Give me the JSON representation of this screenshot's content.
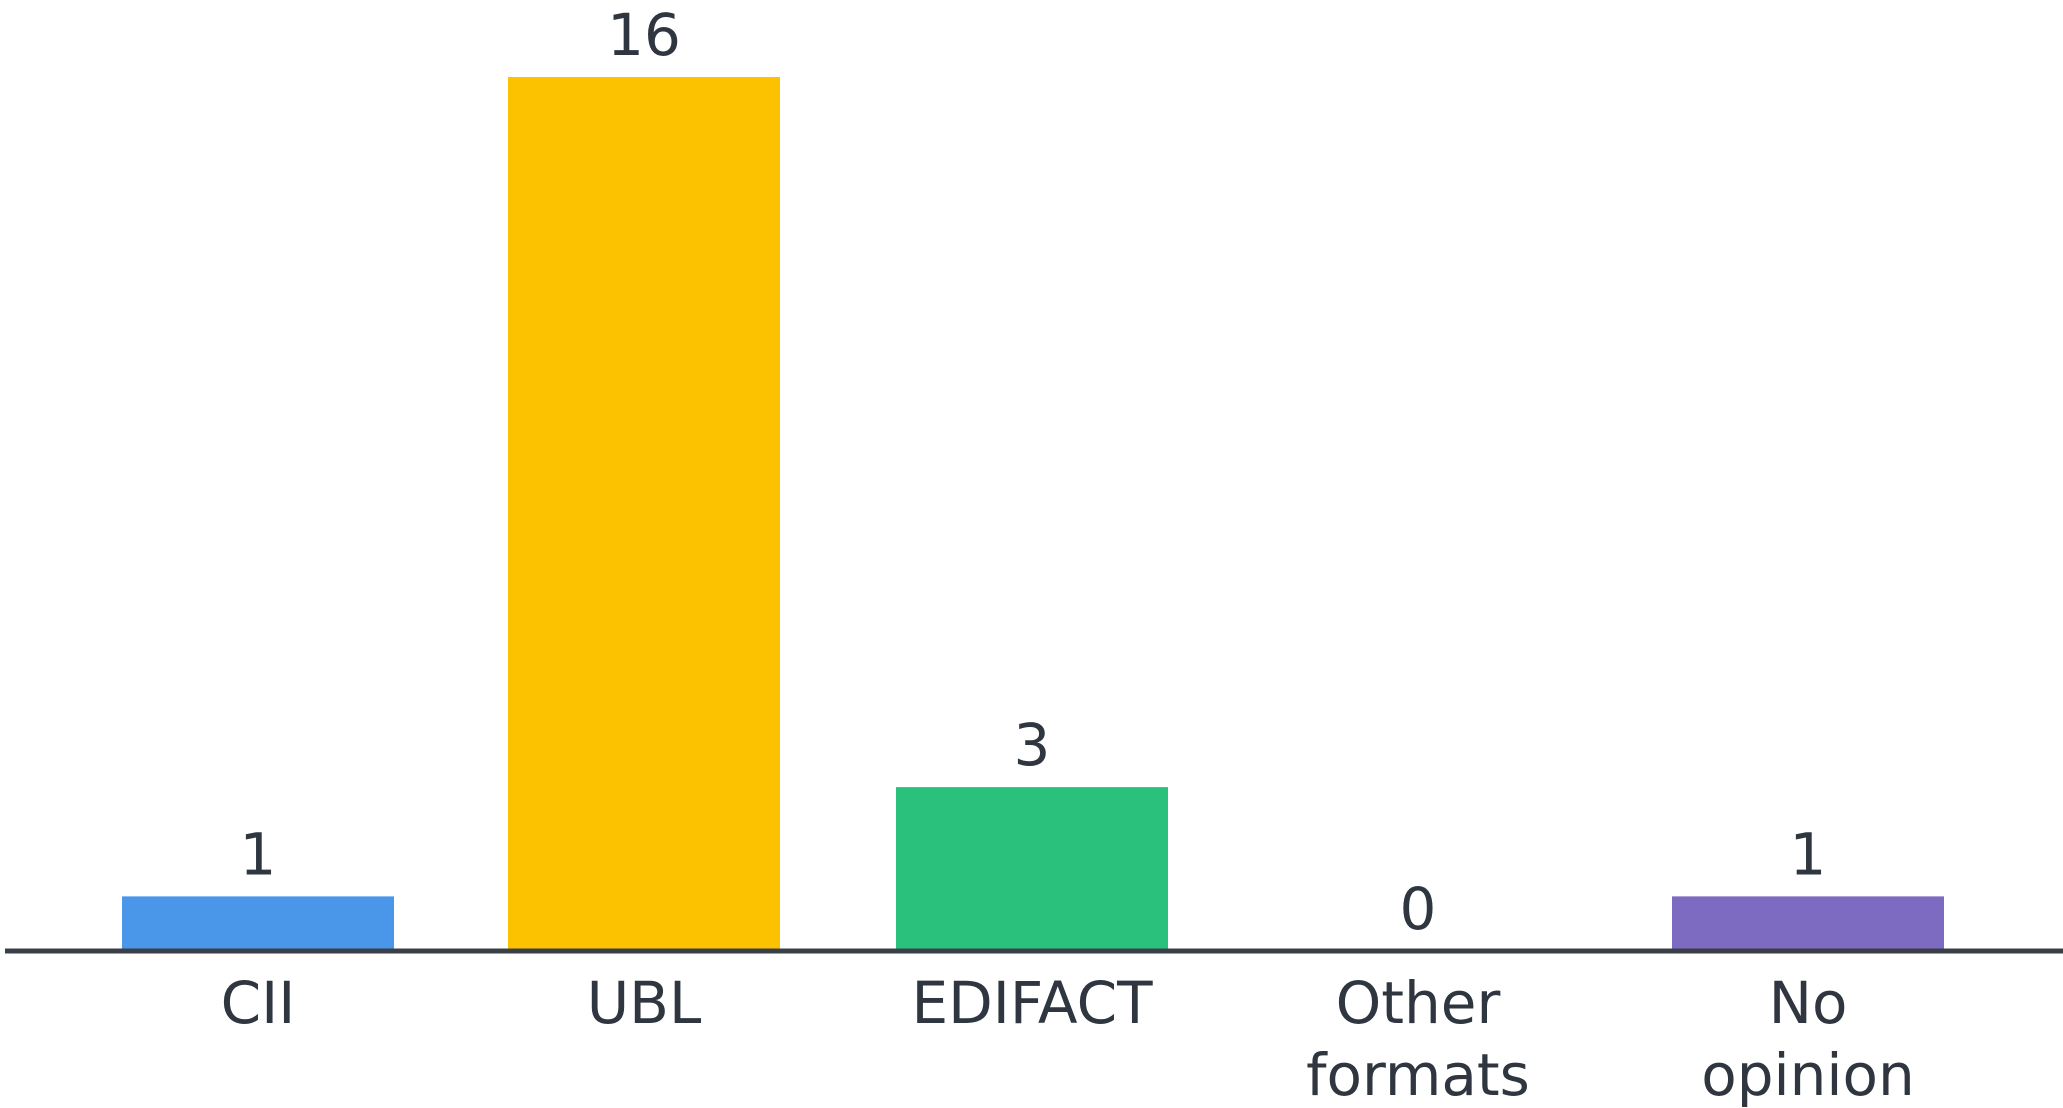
{
  "chart_data": {
    "type": "bar",
    "categories": [
      [
        "CII"
      ],
      [
        "UBL"
      ],
      [
        "EDIFACT"
      ],
      [
        "Other",
        "formats"
      ],
      [
        "No",
        "opinion"
      ]
    ],
    "values": [
      1,
      16,
      3,
      0,
      1
    ],
    "colors": [
      "#4a97ea",
      "#fcc200",
      "#2ac17c",
      "#2ac17c",
      "#7d6ac1"
    ],
    "title": "",
    "xlabel": "",
    "ylabel": "",
    "ylim": [
      0,
      16
    ],
    "grid": false,
    "legend": "none",
    "axis_color": "#3a3f47"
  }
}
